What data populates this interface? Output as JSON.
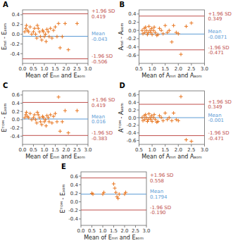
{
  "chart_data": [
    {
      "type": "scatter",
      "title": "A",
      "xlabel": "Mean of Eₘᵣᵢ and Eₐₒₘ",
      "ylabel": "Eₘᵣᵢ - Eₐₒₘ",
      "xlim": [
        0.0,
        3.0
      ],
      "ylim": [
        -0.6,
        0.5
      ],
      "xticks": [
        {
          "value": 0.0,
          "label": "0.0"
        },
        0.5,
        {
          "value": 1.0,
          "label": "1.0"
        },
        1.5,
        {
          "value": 2.0,
          "label": "2.0"
        },
        2.5,
        {
          "value": 3.0,
          "label": "3.0"
        }
      ],
      "yticks": [
        -0.4,
        -0.2,
        {
          "value": 0.0,
          "label": "0.0"
        },
        0.2,
        0.4
      ],
      "grid": false,
      "color": "#E87722",
      "marker": "plus",
      "x": [
        0.1,
        0.15,
        0.18,
        0.22,
        0.28,
        0.35,
        0.42,
        0.5,
        0.55,
        0.6,
        0.65,
        0.68,
        0.72,
        0.78,
        0.82,
        0.88,
        0.92,
        0.96,
        1.0,
        1.05,
        1.08,
        1.12,
        1.18,
        1.22,
        1.28,
        1.35,
        1.42,
        1.5,
        1.58,
        1.65,
        1.72,
        1.82,
        1.95,
        2.1,
        2.5
      ],
      "values": [
        0.05,
        0.12,
        0.18,
        0.08,
        0.05,
        0.15,
        0.0,
        0.05,
        0.12,
        0.0,
        -0.08,
        0.18,
        0.12,
        0.05,
        -0.05,
        -0.12,
        0.08,
        0.05,
        -0.05,
        0.0,
        -0.15,
        0.1,
        0.05,
        -0.05,
        0.12,
        -0.08,
        0.08,
        0.15,
        -0.05,
        0.22,
        -0.28,
        -0.05,
        0.22,
        -0.32,
        0.22
      ],
      "annotations": [
        {
          "y": 0.419,
          "text": "+1.96 SD\n0.419",
          "color": "#C0504D"
        },
        {
          "y": -0.043,
          "text": "Mean\n-0.043",
          "color": "#5B9BD5"
        },
        {
          "y": -0.506,
          "text": "-1.96 SD\n-0.506",
          "color": "#C0504D"
        }
      ]
    },
    {
      "type": "scatter",
      "title": "B",
      "xlabel": "Mean of Aₘᵣᵢ and Aₐₒₘ",
      "ylabel": "Aₘᵣᵢ - Aₐₒₘ",
      "xlim": [
        0.5,
        3.0
      ],
      "ylim": [
        -0.8,
        0.5
      ],
      "xticks": [
        0.5,
        {
          "value": 1.0,
          "label": "1.0"
        },
        1.5,
        {
          "value": 2.0,
          "label": "2.0"
        },
        2.5,
        {
          "value": 3.0,
          "label": "3.0"
        }
      ],
      "yticks": [
        -0.6,
        -0.4,
        -0.2,
        {
          "value": 0.0,
          "label": "0.0"
        },
        0.2,
        0.4
      ],
      "grid": false,
      "color": "#E87722",
      "marker": "plus",
      "x": [
        0.62,
        0.65,
        0.7,
        0.72,
        0.75,
        0.78,
        0.82,
        0.85,
        0.88,
        0.92,
        0.95,
        0.98,
        1.0,
        1.05,
        1.08,
        1.12,
        1.18,
        1.22,
        1.28,
        1.35,
        1.42,
        1.5,
        1.58,
        1.65,
        1.75,
        1.82,
        1.92,
        2.0,
        2.1,
        2.3,
        2.5
      ],
      "values": [
        0.0,
        -0.08,
        0.05,
        -0.05,
        0.08,
        0.0,
        -0.1,
        -0.05,
        0.1,
        0.0,
        -0.05,
        0.05,
        -0.1,
        0.0,
        0.08,
        -0.05,
        -0.12,
        -0.1,
        0.05,
        0.0,
        -0.08,
        0.12,
        -0.05,
        0.0,
        -0.28,
        0.12,
        -0.05,
        -0.08,
        -0.58,
        0.1,
        0.18
      ],
      "annotations": [
        {
          "y": 0.349,
          "text": "+1.96 SD\n0.349",
          "color": "#C0504D"
        },
        {
          "y": -0.0871,
          "text": "Mean\n-0.0871",
          "color": "#5B9BD5"
        },
        {
          "y": -0.471,
          "text": "-1.96 SD\n-0.471",
          "color": "#C0504D"
        }
      ]
    },
    {
      "type": "scatter",
      "title": "C",
      "xlabel": "Mean of Eₘᵣᵢ and Eₐₒₘ",
      "ylabel": "Eᵀᴼᴹ - Eₐₒₘ",
      "xlim": [
        0.0,
        3.0
      ],
      "ylim": [
        -0.6,
        0.7
      ],
      "xticks": [
        {
          "value": 0.0,
          "label": "0.0"
        },
        0.5,
        {
          "value": 1.0,
          "label": "1.0"
        },
        1.5,
        {
          "value": 2.0,
          "label": "2.0"
        },
        2.5,
        {
          "value": 3.0,
          "label": "3.0"
        }
      ],
      "yticks": [
        -0.4,
        -0.2,
        {
          "value": 0.0,
          "label": "0.0"
        },
        0.2,
        0.4,
        0.6
      ],
      "grid": false,
      "color": "#E87722",
      "marker": "plus",
      "x": [
        0.1,
        0.15,
        0.18,
        0.22,
        0.28,
        0.35,
        0.42,
        0.5,
        0.55,
        0.6,
        0.65,
        0.68,
        0.72,
        0.78,
        0.82,
        0.88,
        0.92,
        0.96,
        1.0,
        1.05,
        1.08,
        1.12,
        1.18,
        1.22,
        1.28,
        1.35,
        1.42,
        1.5,
        1.58,
        1.65,
        1.72,
        1.82,
        1.95,
        2.1,
        2.5
      ],
      "values": [
        0.05,
        0.12,
        0.18,
        0.08,
        0.05,
        0.15,
        0.0,
        0.05,
        0.12,
        0.0,
        -0.08,
        0.18,
        0.12,
        0.05,
        -0.05,
        -0.12,
        0.08,
        0.05,
        -0.05,
        0.0,
        -0.15,
        0.1,
        0.05,
        -0.05,
        0.12,
        -0.08,
        0.08,
        0.15,
        -0.05,
        0.55,
        -0.28,
        -0.05,
        0.22,
        -0.32,
        0.22
      ],
      "annotations": [
        {
          "y": 0.419,
          "text": "+1.96 SD\n0.419",
          "color": "#C0504D"
        },
        {
          "y": 0.016,
          "text": "Mean\n0.016",
          "color": "#5B9BD5"
        },
        {
          "y": -0.383,
          "text": "-1.96 SD\n-0.383",
          "color": "#C0504D"
        }
      ]
    },
    {
      "type": "scatter",
      "title": "D",
      "xlabel": "Mean of Aₘᵣᵢ and Aₐₒₘ",
      "ylabel": "Aᵀᴼᴹ - Aₐₒₘ",
      "xlim": [
        0.5,
        3.0
      ],
      "ylim": [
        -0.7,
        0.7
      ],
      "xticks": [
        0.5,
        {
          "value": 1.0,
          "label": "1.0"
        },
        1.5,
        {
          "value": 2.0,
          "label": "2.0"
        },
        2.5,
        {
          "value": 3.0,
          "label": "3.0"
        }
      ],
      "yticks": [
        -0.6,
        -0.4,
        -0.2,
        {
          "value": 0.0,
          "label": "0.0"
        },
        0.2,
        0.4,
        0.6
      ],
      "grid": false,
      "color": "#E87722",
      "marker": "plus",
      "x": [
        0.62,
        0.65,
        0.7,
        0.72,
        0.75,
        0.78,
        0.82,
        0.85,
        0.88,
        0.92,
        0.95,
        0.98,
        1.0,
        1.05,
        1.08,
        1.12,
        1.18,
        1.22,
        1.28,
        1.35,
        1.42,
        1.5,
        1.58,
        1.65,
        1.75,
        1.82,
        1.92,
        2.0,
        2.1,
        2.3,
        2.5
      ],
      "values": [
        0.0,
        -0.08,
        0.05,
        -0.05,
        0.08,
        0.0,
        -0.1,
        -0.05,
        0.1,
        0.0,
        -0.05,
        0.05,
        -0.1,
        0.0,
        0.08,
        -0.05,
        -0.12,
        -0.1,
        0.05,
        0.0,
        -0.08,
        0.12,
        -0.05,
        0.0,
        -0.08,
        0.12,
        -0.05,
        -0.08,
        0.55,
        -0.58,
        -0.62
      ],
      "annotations": [
        {
          "y": 0.349,
          "text": "+1.96 SD\n0.349",
          "color": "#C0504D"
        },
        {
          "y": -0.001,
          "text": "Mean\n-0.001",
          "color": "#5B9BD5"
        },
        {
          "y": -0.471,
          "text": "-1.96 SD\n-0.471",
          "color": "#C0504D"
        }
      ]
    },
    {
      "type": "scatter",
      "title": "E",
      "xlabel": "Mean of Eₘᵣᵢ and Eₐₒₘ",
      "ylabel": "Eᵀᴼᴹ - Eₐₒₘ",
      "xlim": [
        0.0,
        3.0
      ],
      "ylim": [
        -0.55,
        0.7
      ],
      "xticks": [
        {
          "value": 0.0,
          "label": "0.0"
        },
        0.5,
        {
          "value": 1.0,
          "label": "1.0"
        },
        1.5,
        {
          "value": 2.0,
          "label": "2.0"
        },
        2.5,
        {
          "value": 3.0,
          "label": "3.0"
        }
      ],
      "yticks": [
        -0.4,
        -0.2,
        {
          "value": 0.0,
          "label": "0.0"
        },
        0.2,
        0.4,
        0.6
      ],
      "grid": false,
      "color": "#E87722",
      "marker": "plus",
      "x": [
        0.5,
        0.55,
        1.0,
        1.05,
        1.5,
        1.55,
        1.6,
        1.65,
        1.7,
        1.75,
        2.0,
        2.05
      ],
      "values": [
        0.2,
        0.18,
        0.18,
        0.22,
        0.42,
        0.32,
        0.22,
        0.12,
        0.08,
        0.18,
        0.18,
        0.22
      ],
      "annotations": [
        {
          "y": 0.558,
          "text": "+1.96 SD\n0.558",
          "color": "#C0504D"
        },
        {
          "y": 0.1794,
          "text": "Mean\n0.1794",
          "color": "#5B9BD5"
        },
        {
          "y": -0.19,
          "text": "-1.96 SD\n-0.190",
          "color": "#C0504D"
        }
      ]
    }
  ]
}
